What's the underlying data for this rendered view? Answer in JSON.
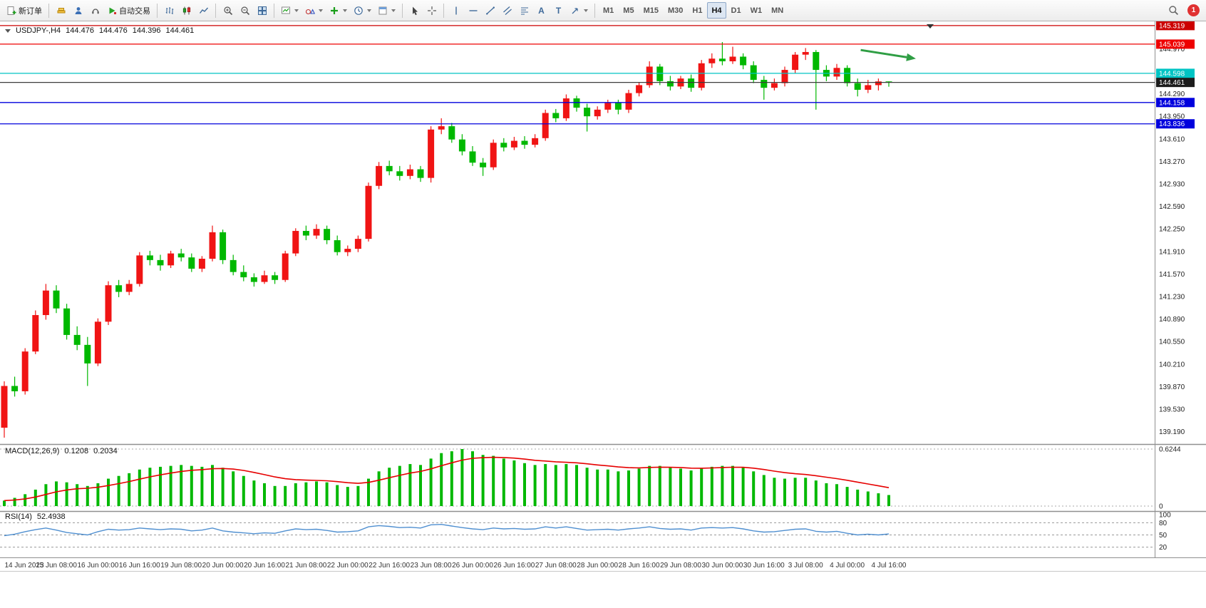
{
  "toolbar": {
    "new_order_label": "新订单",
    "algo_trading_label": "自动交易",
    "text_tool_glyph": "A",
    "label_tool_glyph": "T",
    "timeframes": [
      "M1",
      "M5",
      "M15",
      "M30",
      "H1",
      "H4",
      "D1",
      "W1",
      "MN"
    ],
    "active_timeframe": "H4",
    "notification_count": "1"
  },
  "chart_header": {
    "symbol_period": "USDJPY-,H4",
    "open": "144.476",
    "high": "144.476",
    "low": "144.396",
    "close": "144.461"
  },
  "chart_data": {
    "type": "candlestick",
    "title": "USDJPY- H4",
    "bull_color": "#f01414",
    "bear_color": "#00b800",
    "price_axis": {
      "min": 139.1,
      "max": 145.35,
      "ticks": [
        144.97,
        144.29,
        143.95,
        143.61,
        143.27,
        142.93,
        142.59,
        142.25,
        141.91,
        141.57,
        141.23,
        140.89,
        140.55,
        140.21,
        139.87,
        139.53,
        139.19
      ]
    },
    "candles": [
      [
        139.25,
        139.95,
        139.1,
        139.88
      ],
      [
        139.88,
        140.02,
        139.72,
        139.8
      ],
      [
        139.8,
        140.45,
        139.75,
        140.4
      ],
      [
        140.4,
        141.02,
        140.36,
        140.95
      ],
      [
        140.95,
        141.42,
        140.88,
        141.32
      ],
      [
        141.32,
        141.4,
        140.98,
        141.05
      ],
      [
        141.05,
        141.12,
        140.58,
        140.65
      ],
      [
        140.65,
        140.78,
        140.42,
        140.5
      ],
      [
        140.5,
        140.62,
        139.88,
        140.22
      ],
      [
        140.22,
        140.9,
        140.18,
        140.85
      ],
      [
        140.85,
        141.46,
        140.8,
        141.4
      ],
      [
        141.4,
        141.48,
        141.22,
        141.3
      ],
      [
        141.3,
        141.48,
        141.25,
        141.42
      ],
      [
        141.42,
        141.9,
        141.38,
        141.85
      ],
      [
        141.85,
        141.92,
        141.7,
        141.78
      ],
      [
        141.78,
        141.86,
        141.62,
        141.7
      ],
      [
        141.7,
        141.92,
        141.66,
        141.88
      ],
      [
        141.88,
        141.95,
        141.76,
        141.82
      ],
      [
        141.82,
        141.88,
        141.6,
        141.65
      ],
      [
        141.65,
        141.84,
        141.6,
        141.8
      ],
      [
        141.8,
        142.3,
        141.76,
        142.2
      ],
      [
        142.2,
        142.24,
        141.72,
        141.78
      ],
      [
        141.78,
        141.86,
        141.55,
        141.6
      ],
      [
        141.6,
        141.7,
        141.46,
        141.52
      ],
      [
        141.52,
        141.58,
        141.38,
        141.45
      ],
      [
        141.45,
        141.62,
        141.42,
        141.55
      ],
      [
        141.55,
        141.6,
        141.42,
        141.48
      ],
      [
        141.48,
        141.92,
        141.45,
        141.88
      ],
      [
        141.88,
        142.26,
        141.84,
        142.22
      ],
      [
        142.22,
        142.3,
        142.08,
        142.15
      ],
      [
        142.15,
        142.32,
        142.1,
        142.25
      ],
      [
        142.25,
        142.3,
        142.02,
        142.08
      ],
      [
        142.08,
        142.15,
        141.85,
        141.9
      ],
      [
        141.9,
        142.0,
        141.84,
        141.95
      ],
      [
        141.95,
        142.15,
        141.9,
        142.1
      ],
      [
        142.1,
        142.95,
        142.06,
        142.9
      ],
      [
        142.9,
        143.26,
        142.85,
        143.2
      ],
      [
        143.2,
        143.28,
        143.06,
        143.12
      ],
      [
        143.12,
        143.2,
        142.98,
        143.05
      ],
      [
        143.05,
        143.22,
        143.0,
        143.15
      ],
      [
        143.15,
        143.2,
        142.96,
        143.02
      ],
      [
        143.02,
        143.8,
        142.95,
        143.75
      ],
      [
        143.75,
        143.92,
        143.68,
        143.8
      ],
      [
        143.8,
        143.85,
        143.55,
        143.6
      ],
      [
        143.6,
        143.68,
        143.36,
        143.42
      ],
      [
        143.42,
        143.5,
        143.2,
        143.25
      ],
      [
        143.25,
        143.32,
        143.05,
        143.18
      ],
      [
        143.18,
        143.6,
        143.14,
        143.55
      ],
      [
        143.55,
        143.62,
        143.42,
        143.48
      ],
      [
        143.48,
        143.64,
        143.44,
        143.58
      ],
      [
        143.58,
        143.65,
        143.46,
        143.52
      ],
      [
        143.52,
        143.68,
        143.48,
        143.62
      ],
      [
        143.62,
        144.05,
        143.58,
        144.0
      ],
      [
        144.0,
        144.06,
        143.86,
        143.92
      ],
      [
        143.92,
        144.28,
        143.88,
        144.22
      ],
      [
        144.22,
        144.26,
        144.02,
        144.08
      ],
      [
        144.08,
        144.14,
        143.72,
        143.95
      ],
      [
        143.95,
        144.1,
        143.9,
        144.05
      ],
      [
        144.05,
        144.2,
        144.0,
        144.15
      ],
      [
        144.15,
        144.2,
        143.98,
        144.05
      ],
      [
        144.05,
        144.35,
        144.0,
        144.3
      ],
      [
        144.3,
        144.46,
        144.25,
        144.42
      ],
      [
        144.42,
        144.78,
        144.38,
        144.7
      ],
      [
        144.7,
        144.74,
        144.42,
        144.48
      ],
      [
        144.48,
        144.56,
        144.34,
        144.4
      ],
      [
        144.4,
        144.56,
        144.36,
        144.52
      ],
      [
        144.52,
        144.58,
        144.32,
        144.38
      ],
      [
        144.38,
        144.8,
        144.34,
        144.75
      ],
      [
        144.75,
        144.9,
        144.68,
        144.82
      ],
      [
        144.82,
        145.07,
        144.72,
        144.78
      ],
      [
        144.78,
        145.0,
        144.74,
        144.85
      ],
      [
        144.85,
        144.9,
        144.66,
        144.72
      ],
      [
        144.72,
        144.78,
        144.45,
        144.5
      ],
      [
        144.5,
        144.56,
        144.2,
        144.38
      ],
      [
        144.38,
        144.52,
        144.34,
        144.45
      ],
      [
        144.45,
        144.7,
        144.4,
        144.65
      ],
      [
        144.65,
        144.92,
        144.6,
        144.88
      ],
      [
        144.88,
        144.98,
        144.8,
        144.92
      ],
      [
        144.92,
        144.95,
        144.05,
        144.65
      ],
      [
        144.65,
        144.72,
        144.48,
        144.55
      ],
      [
        144.55,
        144.74,
        144.5,
        144.68
      ],
      [
        144.68,
        144.72,
        144.4,
        144.45
      ],
      [
        144.45,
        144.52,
        144.25,
        144.35
      ],
      [
        144.35,
        144.5,
        144.3,
        144.42
      ],
      [
        144.42,
        144.52,
        144.34,
        144.476
      ],
      [
        144.476,
        144.476,
        144.396,
        144.461
      ]
    ],
    "time_labels": [
      "14 Jun 2023",
      "15 Jun 08:00",
      "16 Jun 00:00",
      "16 Jun 16:00",
      "19 Jun 08:00",
      "20 Jun 00:00",
      "20 Jun 16:00",
      "21 Jun 08:00",
      "22 Jun 00:00",
      "22 Jun 16:00",
      "23 Jun 08:00",
      "26 Jun 00:00",
      "26 Jun 16:00",
      "27 Jun 08:00",
      "28 Jun 00:00",
      "28 Jun 16:00",
      "29 Jun 08:00",
      "30 Jun 00:00",
      "30 Jun 16:00",
      "3 Jul 08:00",
      "4 Jul 00:00",
      "4 Jul 16:00"
    ],
    "first_label_candle": 1,
    "label_step": 4,
    "hlines": [
      {
        "price": 145.319,
        "label": "145.319",
        "color": "#cc0000"
      },
      {
        "price": 145.039,
        "label": "145.039",
        "color": "#ee0000"
      },
      {
        "price": 144.598,
        "label": "144.598",
        "color": "#00c4c4"
      },
      {
        "price": 144.158,
        "label": "144.158",
        "color": "#0000dd"
      },
      {
        "price": 143.836,
        "label": "143.836",
        "color": "#0000dd"
      }
    ],
    "current_price": {
      "value": 144.461,
      "label": "144.461",
      "line_color": "#3c3c3c",
      "badge_color": "#1c1c1c"
    },
    "arrow_annotation": {
      "x1_bar": 82.3,
      "y1_price": 144.95,
      "x2_bar": 87.6,
      "y2_price": 144.82,
      "color": "#2f9e44"
    },
    "macd": {
      "name": "MACD(12,26,9)",
      "value": "0.1208",
      "signal_value": "0.2034",
      "scale_max_label": "0.6244",
      "scale_min_label": "0",
      "scale_max_value": 0.6244,
      "bar_color": "#00b800",
      "signal_color": "#e60000",
      "signal_period": 9,
      "values": [
        0.06,
        0.09,
        0.13,
        0.18,
        0.24,
        0.27,
        0.26,
        0.24,
        0.22,
        0.25,
        0.3,
        0.33,
        0.36,
        0.4,
        0.42,
        0.43,
        0.44,
        0.45,
        0.44,
        0.43,
        0.45,
        0.42,
        0.38,
        0.33,
        0.28,
        0.25,
        0.22,
        0.22,
        0.25,
        0.26,
        0.27,
        0.26,
        0.23,
        0.21,
        0.22,
        0.3,
        0.38,
        0.42,
        0.44,
        0.46,
        0.45,
        0.52,
        0.58,
        0.6,
        0.6244,
        0.6,
        0.56,
        0.55,
        0.52,
        0.5,
        0.47,
        0.45,
        0.46,
        0.45,
        0.46,
        0.45,
        0.42,
        0.4,
        0.4,
        0.38,
        0.39,
        0.41,
        0.44,
        0.44,
        0.42,
        0.41,
        0.39,
        0.41,
        0.43,
        0.44,
        0.44,
        0.42,
        0.38,
        0.34,
        0.31,
        0.3,
        0.31,
        0.31,
        0.28,
        0.25,
        0.24,
        0.21,
        0.18,
        0.16,
        0.14,
        0.1208
      ]
    },
    "rsi": {
      "name": "RSI(14)",
      "value": "52.4938",
      "color": "#4f8fd0",
      "levels": [
        100,
        80,
        50,
        20
      ],
      "values": [
        48,
        52,
        58,
        63,
        67,
        62,
        56,
        53,
        50,
        58,
        64,
        62,
        63,
        67,
        65,
        63,
        65,
        64,
        60,
        62,
        67,
        60,
        57,
        55,
        53,
        55,
        54,
        60,
        65,
        63,
        64,
        61,
        57,
        58,
        60,
        70,
        73,
        71,
        68,
        69,
        67,
        75,
        76,
        72,
        68,
        65,
        63,
        67,
        65,
        66,
        64,
        65,
        70,
        67,
        70,
        66,
        62,
        63,
        64,
        62,
        65,
        67,
        70,
        66,
        64,
        65,
        62,
        67,
        68,
        67,
        68,
        65,
        60,
        57,
        58,
        61,
        64,
        65,
        59,
        57,
        59,
        54,
        50,
        52,
        50,
        52.4938
      ]
    }
  }
}
